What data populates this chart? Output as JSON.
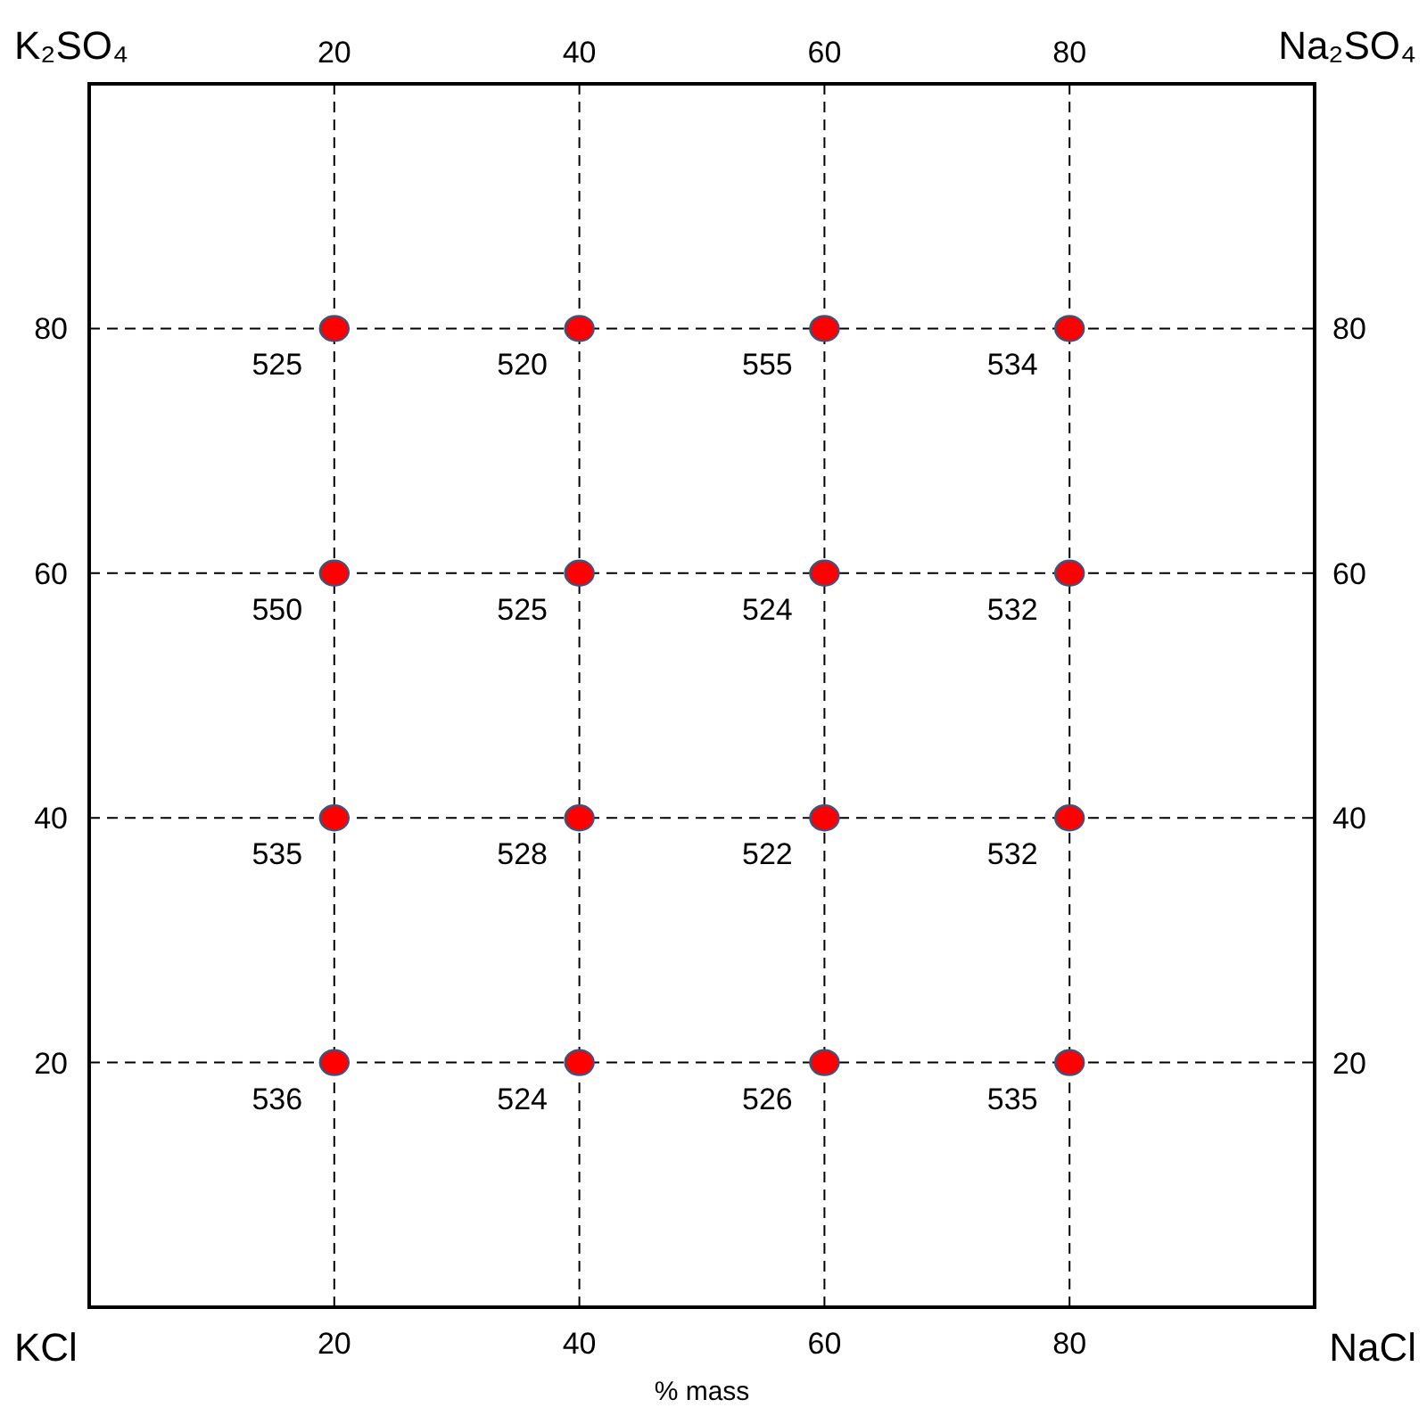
{
  "chart_data": {
    "type": "scatter",
    "xlabel": "% mass",
    "xlim": [
      0,
      100
    ],
    "xticks": [
      20,
      40,
      60,
      80
    ],
    "x2lim": [
      0,
      100
    ],
    "x2ticks": [
      20,
      40,
      60,
      80
    ],
    "ylim": [
      0,
      100
    ],
    "yticks": [
      20,
      40,
      60,
      80
    ],
    "y2lim": [
      0,
      100
    ],
    "y2ticks": [
      20,
      40,
      60,
      80
    ],
    "grid": true,
    "marker": "circle",
    "series": [
      {
        "color": "#ff0000",
        "x": [
          20,
          40,
          60,
          80,
          20,
          40,
          60,
          80,
          20,
          40,
          60,
          80,
          20,
          40,
          60,
          80
        ],
        "values": [
          80,
          80,
          80,
          80,
          60,
          60,
          60,
          60,
          40,
          40,
          40,
          40,
          20,
          20,
          20,
          20
        ]
      }
    ],
    "annotations": [
      "K₂SO₄",
      "Na₂SO₄",
      "KCl",
      "NaCl",
      {
        "text": "525",
        "x": 20,
        "y": 80
      },
      {
        "text": "520",
        "x": 40,
        "y": 80
      },
      {
        "text": "555",
        "x": 60,
        "y": 80
      },
      {
        "text": "534",
        "x": 80,
        "y": 80
      },
      {
        "text": "550",
        "x": 20,
        "y": 60
      },
      {
        "text": "525",
        "x": 40,
        "y": 60
      },
      {
        "text": "524",
        "x": 60,
        "y": 60
      },
      {
        "text": "532",
        "x": 80,
        "y": 60
      },
      {
        "text": "535",
        "x": 20,
        "y": 40
      },
      {
        "text": "528",
        "x": 40,
        "y": 40
      },
      {
        "text": "522",
        "x": 60,
        "y": 40
      },
      {
        "text": "532",
        "x": 80,
        "y": 40
      },
      {
        "text": "536",
        "x": 20,
        "y": 20
      },
      {
        "text": "524",
        "x": 40,
        "y": 20
      },
      {
        "text": "526",
        "x": 60,
        "y": 20
      },
      {
        "text": "535",
        "x": 80,
        "y": 20
      }
    ]
  }
}
